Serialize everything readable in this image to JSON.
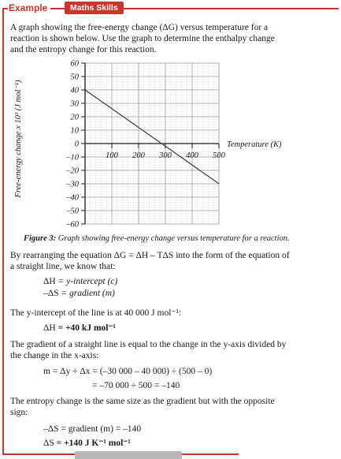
{
  "header": {
    "example_label": "Example",
    "skill_badge": "Maths Skills"
  },
  "intro_lines": [
    "A graph showing the free-energy change (ΔG) versus temperature for a",
    "reaction is shown below.  Use the graph to determine the enthalpy change",
    "and the entropy change for this reaction."
  ],
  "chart_data": {
    "type": "line",
    "x": [
      0,
      500
    ],
    "series": [
      {
        "values": [
          40,
          -30
        ]
      }
    ],
    "xlabel": "Temperature (K)",
    "ylabel": "Free-energy change x 10³ (J mol⁻¹)",
    "xlim": [
      0,
      500
    ],
    "ylim": [
      -60,
      60
    ],
    "x_ticks": [
      100,
      200,
      300,
      400,
      500
    ],
    "y_ticks": [
      60,
      50,
      40,
      30,
      20,
      10,
      0,
      -10,
      -20,
      -30,
      -40,
      -50,
      -60
    ],
    "grid": true
  },
  "figure_caption": {
    "label": "Figure 3:",
    "text": " Graph showing free-energy change versus temperature for a reaction."
  },
  "rearrange": {
    "line1_prefix": "By rearranging the equation ",
    "equation": "ΔG = ΔH – TΔS",
    "line1_suffix": " into the form of the equation of",
    "line2": "a straight line, we know that:"
  },
  "identities": {
    "dh_lhs": "ΔH",
    "dh_rhs": " = y-intercept (c)",
    "ds_lhs": "–ΔS",
    "ds_rhs": " = gradient (m)"
  },
  "intercept": {
    "text": "The y-intercept of the line is at 40 000 J mol⁻¹:",
    "result_lhs": "ΔH",
    "result_rhs": " = +40 kJ mol⁻¹"
  },
  "gradient": {
    "line1": "The gradient of a straight line is equal to the change in the y-axis divided by",
    "line2": "the change in the x-axis:",
    "calc1": "m = Δy ÷ Δx = (–30 000 – 40 000) ÷ (500 – 0)",
    "calc2": "= –70 000 ÷ 500 = –140"
  },
  "entropy": {
    "line1": "The entropy change is the same size as the gradient but with the opposite",
    "line2": "sign:",
    "eq1": "–ΔS = gradient (m) = –140",
    "eq2_lhs": "ΔS",
    "eq2_rhs": " = +140 J K⁻¹ mol⁻¹"
  }
}
